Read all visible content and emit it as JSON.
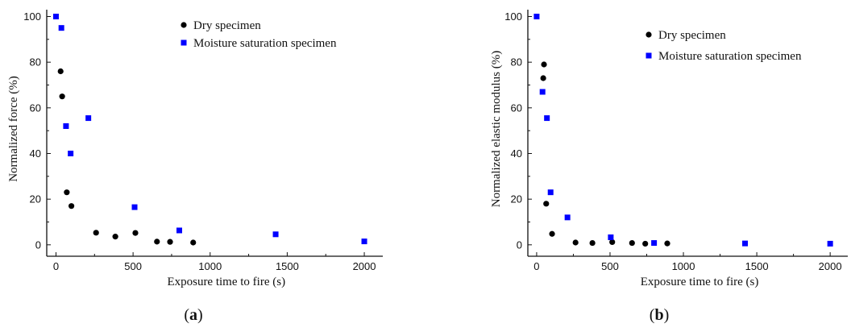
{
  "chart_data": [
    {
      "type": "scatter",
      "panel_label": "a",
      "xlabel": "Exposure time to fire (s)",
      "ylabel": "Normalized force (%)",
      "xlim": [
        -60,
        2120
      ],
      "ylim": [
        -5,
        103
      ],
      "xticks": [
        0,
        500,
        1000,
        1500,
        2000
      ],
      "yticks": [
        0,
        20,
        40,
        60,
        80,
        100
      ],
      "grid": false,
      "legend_position": "top-right",
      "series": [
        {
          "name": "Dry specimen",
          "marker": "circle",
          "color": "#000000",
          "points": [
            [
              30,
              76
            ],
            [
              40,
              65
            ],
            [
              70,
              23
            ],
            [
              100,
              17
            ],
            [
              260,
              5.3
            ],
            [
              385,
              3.6
            ],
            [
              515,
              5.2
            ],
            [
              655,
              1.4
            ],
            [
              740,
              1.3
            ],
            [
              890,
              1.0
            ]
          ]
        },
        {
          "name": "Moisture saturation specimen",
          "marker": "square",
          "color": "#0000ff",
          "points": [
            [
              0,
              100
            ],
            [
              35,
              95
            ],
            [
              65,
              52
            ],
            [
              95,
              40
            ],
            [
              210,
              55.5
            ],
            [
              510,
              16.5
            ],
            [
              800,
              6.3
            ],
            [
              1425,
              4.6
            ],
            [
              2000,
              1.5
            ]
          ]
        }
      ]
    },
    {
      "type": "scatter",
      "panel_label": "b",
      "xlabel": "Exposure time to fire (s)",
      "ylabel": "Normalized elastic modulus (%)",
      "xlim": [
        -60,
        2120
      ],
      "ylim": [
        -5,
        103
      ],
      "xticks": [
        0,
        500,
        1000,
        1500,
        2000
      ],
      "yticks": [
        0,
        20,
        40,
        60,
        80,
        100
      ],
      "grid": false,
      "legend_position": "top-right",
      "series": [
        {
          "name": "Dry specimen",
          "marker": "circle",
          "color": "#000000",
          "points": [
            [
              50,
              79
            ],
            [
              45,
              73
            ],
            [
              65,
              18
            ],
            [
              105,
              4.8
            ],
            [
              265,
              1.0
            ],
            [
              380,
              0.8
            ],
            [
              515,
              1.2
            ],
            [
              650,
              0.8
            ],
            [
              740,
              0.5
            ],
            [
              890,
              0.6
            ]
          ]
        },
        {
          "name": "Moisture saturation specimen",
          "marker": "square",
          "color": "#0000ff",
          "points": [
            [
              0,
              100
            ],
            [
              40,
              67
            ],
            [
              70,
              55.5
            ],
            [
              95,
              23
            ],
            [
              210,
              12
            ],
            [
              505,
              3.3
            ],
            [
              800,
              0.8
            ],
            [
              1420,
              0.6
            ],
            [
              2000,
              0.5
            ]
          ]
        }
      ]
    }
  ]
}
